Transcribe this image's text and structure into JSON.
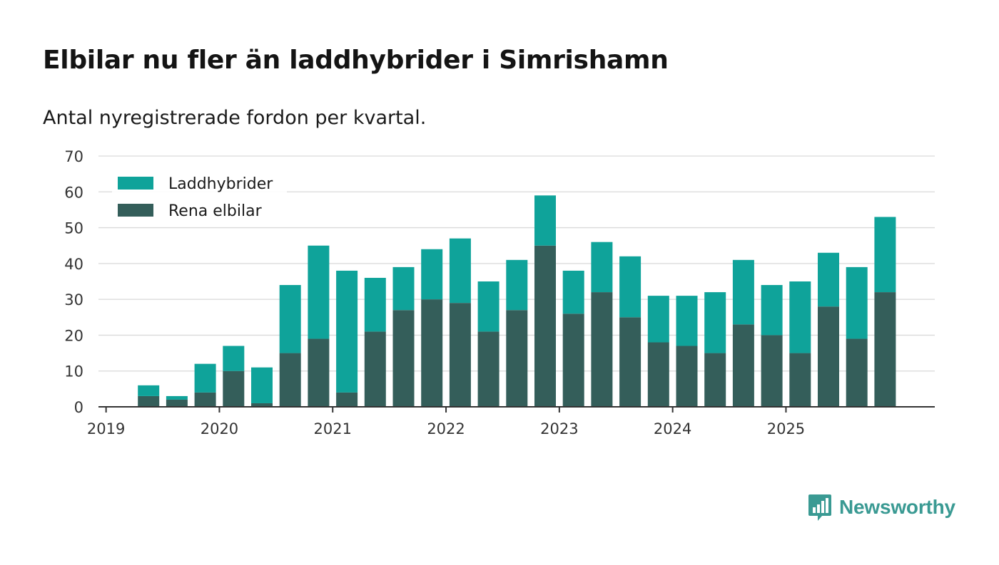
{
  "title": "Elbilar nu fler än laddhybrider i Simrishamn",
  "subtitle": "Antal nyregistrerade fordon per kvartal.",
  "brand": "Newsworthy",
  "colors": {
    "laddhybrider": "#0fa39a",
    "elbilar": "#345e5a",
    "grid": "#d9d9d9",
    "axis": "#333333",
    "brand": "#3a9a93"
  },
  "chart_data": {
    "type": "bar",
    "stacked": true,
    "title": "Elbilar nu fler än laddhybrider i Simrishamn",
    "subtitle": "Antal nyregistrerade fordon per kvartal.",
    "xlabel": "",
    "ylabel": "",
    "ylim": [
      0,
      70
    ],
    "yticks": [
      0,
      10,
      20,
      30,
      40,
      50,
      60,
      70
    ],
    "xtick_labels": [
      "2019",
      "2020",
      "2021",
      "2022",
      "2023",
      "2024",
      "2025"
    ],
    "legend_position": "top-left",
    "categories": [
      "2019 Q1",
      "2019 Q2",
      "2019 Q3",
      "2019 Q4",
      "2020 Q1",
      "2020 Q2",
      "2020 Q3",
      "2020 Q4",
      "2021 Q1",
      "2021 Q2",
      "2021 Q3",
      "2021 Q4",
      "2022 Q1",
      "2022 Q2",
      "2022 Q3",
      "2022 Q4",
      "2023 Q1",
      "2023 Q2",
      "2023 Q3",
      "2023 Q4",
      "2024 Q1",
      "2024 Q2",
      "2024 Q3",
      "2024 Q4",
      "2025 Q1",
      "2025 Q2",
      "2025 Q3",
      "2025 Q4"
    ],
    "series": [
      {
        "name": "Rena elbilar",
        "values": [
          0,
          3,
          2,
          4,
          10,
          1,
          15,
          19,
          4,
          21,
          27,
          30,
          29,
          21,
          27,
          45,
          26,
          32,
          25,
          18,
          17,
          15,
          23,
          20,
          15,
          28,
          19,
          32
        ]
      },
      {
        "name": "Laddhybrider",
        "values": [
          0,
          3,
          1,
          8,
          7,
          10,
          19,
          26,
          34,
          15,
          12,
          14,
          18,
          14,
          14,
          14,
          12,
          14,
          17,
          13,
          14,
          17,
          18,
          14,
          20,
          15,
          20,
          21
        ]
      }
    ]
  }
}
